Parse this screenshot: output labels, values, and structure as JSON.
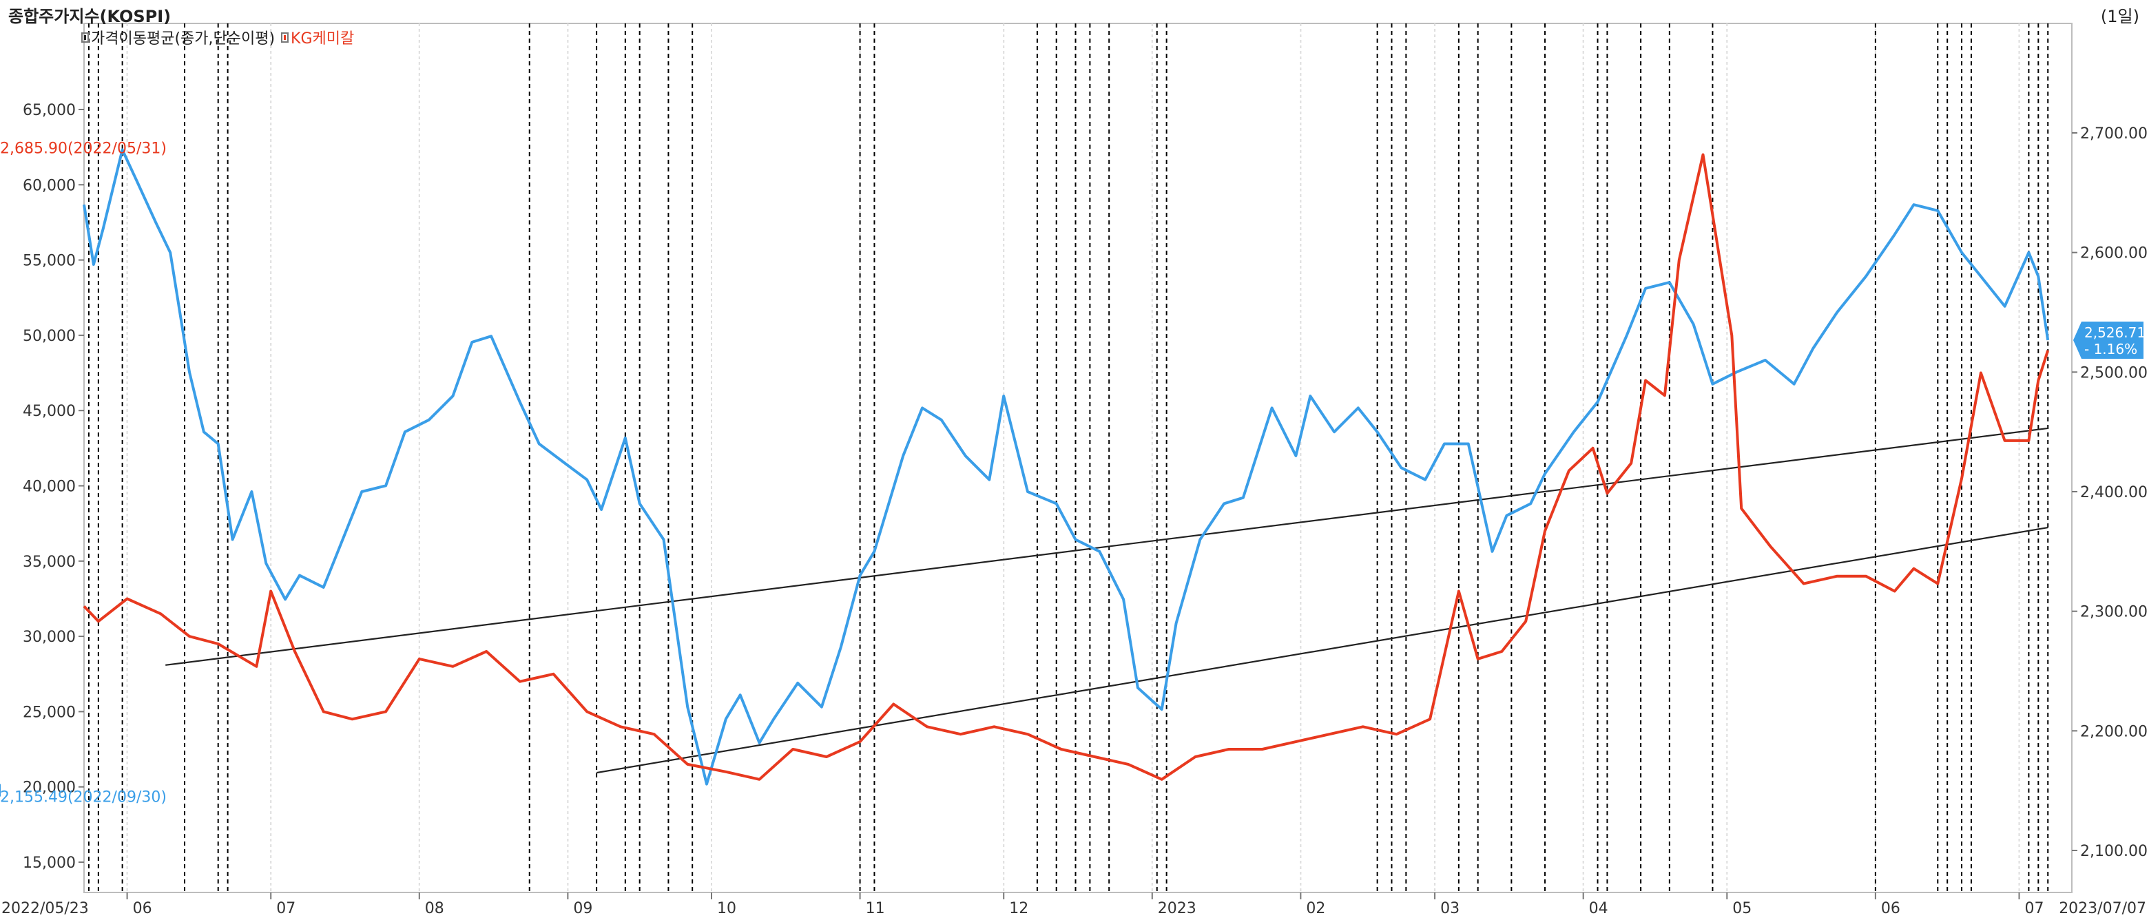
{
  "header": {
    "title": "종합주가지수(KOSPI)",
    "period": "(1일)"
  },
  "legend": [
    {
      "label": "가격이동평균(종가,단순이평)",
      "color": "#222222"
    },
    {
      "label": "KG케미칼",
      "color": "#e8391f"
    }
  ],
  "colors": {
    "kospi": "#3a9ee8",
    "kg": "#e8391f",
    "trendline": "#222222",
    "grid": "#dddddd",
    "event_line": "#000000"
  },
  "chart_data": {
    "type": "line",
    "x_tick_labels": [
      "2022/05/23",
      "06",
      "07",
      "08",
      "09",
      "10",
      "11",
      "12",
      "2023",
      "02",
      "03",
      "04",
      "05",
      "06",
      "07",
      "2023/07/07"
    ],
    "left_axis": {
      "ticks": [
        "65,000",
        "60,000",
        "55,000",
        "50,000",
        "45,000",
        "40,000",
        "35,000",
        "30,000",
        "25,000",
        "20,000",
        "15,000"
      ],
      "ylim": [
        15000,
        65000
      ]
    },
    "right_axis": {
      "ticks": [
        "2,700.00",
        "2,600.00",
        "2,500.00",
        "2,400.00",
        "2,300.00",
        "2,200.00",
        "2,100.00"
      ],
      "ylim": [
        2100,
        2700
      ]
    },
    "annotations": {
      "max": {
        "text": "2,685.90(2022/05/31)",
        "date": "2022/05/31",
        "value": 2685.9
      },
      "min": {
        "text": "2,155.49(2022/09/30)",
        "date": "2022/09/30",
        "value": 2155.49
      },
      "last_value": "2,526.71",
      "last_change": "- 1.16%"
    },
    "series": [
      {
        "name": "종합주가지수(KOSPI)",
        "axis": "right",
        "points": [
          [
            "2022-05-23",
            2640
          ],
          [
            "2022-05-25",
            2590
          ],
          [
            "2022-05-27",
            2620
          ],
          [
            "2022-05-31",
            2685.9
          ],
          [
            "2022-06-03",
            2660
          ],
          [
            "2022-06-07",
            2625
          ],
          [
            "2022-06-10",
            2600
          ],
          [
            "2022-06-14",
            2500
          ],
          [
            "2022-06-17",
            2450
          ],
          [
            "2022-06-20",
            2440
          ],
          [
            "2022-06-23",
            2360
          ],
          [
            "2022-06-27",
            2400
          ],
          [
            "2022-06-30",
            2340
          ],
          [
            "2022-07-04",
            2310
          ],
          [
            "2022-07-07",
            2330
          ],
          [
            "2022-07-12",
            2320
          ],
          [
            "2022-07-15",
            2350
          ],
          [
            "2022-07-20",
            2400
          ],
          [
            "2022-07-25",
            2405
          ],
          [
            "2022-07-29",
            2450
          ],
          [
            "2022-08-03",
            2460
          ],
          [
            "2022-08-08",
            2480
          ],
          [
            "2022-08-12",
            2525
          ],
          [
            "2022-08-16",
            2530
          ],
          [
            "2022-08-22",
            2475
          ],
          [
            "2022-08-26",
            2440
          ],
          [
            "2022-08-31",
            2425
          ],
          [
            "2022-09-05",
            2410
          ],
          [
            "2022-09-08",
            2385
          ],
          [
            "2022-09-13",
            2445
          ],
          [
            "2022-09-16",
            2390
          ],
          [
            "2022-09-21",
            2360
          ],
          [
            "2022-09-26",
            2220
          ],
          [
            "2022-09-30",
            2155.49
          ],
          [
            "2022-10-04",
            2210
          ],
          [
            "2022-10-07",
            2230
          ],
          [
            "2022-10-11",
            2190
          ],
          [
            "2022-10-14",
            2210
          ],
          [
            "2022-10-19",
            2240
          ],
          [
            "2022-10-24",
            2220
          ],
          [
            "2022-10-28",
            2270
          ],
          [
            "2022-11-01",
            2330
          ],
          [
            "2022-11-04",
            2350
          ],
          [
            "2022-11-10",
            2430
          ],
          [
            "2022-11-14",
            2470
          ],
          [
            "2022-11-18",
            2460
          ],
          [
            "2022-11-23",
            2430
          ],
          [
            "2022-11-28",
            2410
          ],
          [
            "2022-12-01",
            2480
          ],
          [
            "2022-12-06",
            2400
          ],
          [
            "2022-12-12",
            2390
          ],
          [
            "2022-12-16",
            2360
          ],
          [
            "2022-12-21",
            2350
          ],
          [
            "2022-12-26",
            2310
          ],
          [
            "2022-12-29",
            2236
          ],
          [
            "2023-01-03",
            2218
          ],
          [
            "2023-01-06",
            2290
          ],
          [
            "2023-01-11",
            2360
          ],
          [
            "2023-01-16",
            2390
          ],
          [
            "2023-01-20",
            2395
          ],
          [
            "2023-01-26",
            2470
          ],
          [
            "2023-01-31",
            2430
          ],
          [
            "2023-02-03",
            2480
          ],
          [
            "2023-02-08",
            2450
          ],
          [
            "2023-02-13",
            2470
          ],
          [
            "2023-02-17",
            2450
          ],
          [
            "2023-02-22",
            2420
          ],
          [
            "2023-02-27",
            2410
          ],
          [
            "2023-03-03",
            2440
          ],
          [
            "2023-03-08",
            2440
          ],
          [
            "2023-03-13",
            2350
          ],
          [
            "2023-03-16",
            2380
          ],
          [
            "2023-03-21",
            2390
          ],
          [
            "2023-03-24",
            2415
          ],
          [
            "2023-03-30",
            2450
          ],
          [
            "2023-04-04",
            2475
          ],
          [
            "2023-04-10",
            2530
          ],
          [
            "2023-04-14",
            2570
          ],
          [
            "2023-04-19",
            2575
          ],
          [
            "2023-04-24",
            2540
          ],
          [
            "2023-04-28",
            2490
          ],
          [
            "2023-05-03",
            2500
          ],
          [
            "2023-05-09",
            2510
          ],
          [
            "2023-05-15",
            2490
          ],
          [
            "2023-05-19",
            2520
          ],
          [
            "2023-05-24",
            2550
          ],
          [
            "2023-05-30",
            2580
          ],
          [
            "2023-06-05",
            2615
          ],
          [
            "2023-06-09",
            2640
          ],
          [
            "2023-06-14",
            2635
          ],
          [
            "2023-06-19",
            2600
          ],
          [
            "2023-06-23",
            2580
          ],
          [
            "2023-06-28",
            2555
          ],
          [
            "2023-07-03",
            2600
          ],
          [
            "2023-07-05",
            2580
          ],
          [
            "2023-07-07",
            2526.71
          ]
        ]
      },
      {
        "name": "KG케미칼",
        "axis": "left",
        "points": [
          [
            "2022-05-23",
            32000
          ],
          [
            "2022-05-26",
            31000
          ],
          [
            "2022-06-01",
            32500
          ],
          [
            "2022-06-08",
            31500
          ],
          [
            "2022-06-14",
            30000
          ],
          [
            "2022-06-20",
            29500
          ],
          [
            "2022-06-28",
            28000
          ],
          [
            "2022-07-01",
            33000
          ],
          [
            "2022-07-06",
            29000
          ],
          [
            "2022-07-12",
            25000
          ],
          [
            "2022-07-18",
            24500
          ],
          [
            "2022-07-25",
            25000
          ],
          [
            "2022-08-01",
            28500
          ],
          [
            "2022-08-08",
            28000
          ],
          [
            "2022-08-15",
            29000
          ],
          [
            "2022-08-22",
            27000
          ],
          [
            "2022-08-29",
            27500
          ],
          [
            "2022-09-05",
            25000
          ],
          [
            "2022-09-12",
            24000
          ],
          [
            "2022-09-19",
            23500
          ],
          [
            "2022-09-26",
            21500
          ],
          [
            "2022-10-04",
            21000
          ],
          [
            "2022-10-11",
            20500
          ],
          [
            "2022-10-18",
            22500
          ],
          [
            "2022-10-25",
            22000
          ],
          [
            "2022-11-01",
            23000
          ],
          [
            "2022-11-08",
            25500
          ],
          [
            "2022-11-15",
            24000
          ],
          [
            "2022-11-22",
            23500
          ],
          [
            "2022-11-29",
            24000
          ],
          [
            "2022-12-06",
            23500
          ],
          [
            "2022-12-13",
            22500
          ],
          [
            "2022-12-20",
            22000
          ],
          [
            "2022-12-27",
            21500
          ],
          [
            "2023-01-03",
            20500
          ],
          [
            "2023-01-10",
            22000
          ],
          [
            "2023-01-17",
            22500
          ],
          [
            "2023-01-24",
            22500
          ],
          [
            "2023-01-31",
            23000
          ],
          [
            "2023-02-07",
            23500
          ],
          [
            "2023-02-14",
            24000
          ],
          [
            "2023-02-21",
            23500
          ],
          [
            "2023-02-28",
            24500
          ],
          [
            "2023-03-06",
            33000
          ],
          [
            "2023-03-10",
            28500
          ],
          [
            "2023-03-15",
            29000
          ],
          [
            "2023-03-20",
            31000
          ],
          [
            "2023-03-24",
            37000
          ],
          [
            "2023-03-29",
            41000
          ],
          [
            "2023-04-03",
            42500
          ],
          [
            "2023-04-06",
            39500
          ],
          [
            "2023-04-11",
            41500
          ],
          [
            "2023-04-14",
            47000
          ],
          [
            "2023-04-18",
            46000
          ],
          [
            "2023-04-21",
            55000
          ],
          [
            "2023-04-26",
            62000
          ],
          [
            "2023-05-02",
            50000
          ],
          [
            "2023-05-04",
            38500
          ],
          [
            "2023-05-10",
            36000
          ],
          [
            "2023-05-17",
            33500
          ],
          [
            "2023-05-24",
            34000
          ],
          [
            "2023-05-30",
            34000
          ],
          [
            "2023-06-05",
            33000
          ],
          [
            "2023-06-09",
            34500
          ],
          [
            "2023-06-14",
            33500
          ],
          [
            "2023-06-19",
            40500
          ],
          [
            "2023-06-23",
            47500
          ],
          [
            "2023-06-28",
            43000
          ],
          [
            "2023-07-03",
            43000
          ],
          [
            "2023-07-05",
            47000
          ],
          [
            "2023-07-07",
            49000
          ]
        ]
      }
    ],
    "trendlines": [
      {
        "from": [
          "2022-06-09",
          2255
        ],
        "to": [
          "2023-07-07",
          2453
        ]
      },
      {
        "from": [
          "2022-09-07",
          2165
        ],
        "to": [
          "2023-07-07",
          2370
        ]
      }
    ],
    "event_dates": [
      "2022-05-24",
      "2022-05-26",
      "2022-05-31",
      "2022-06-13",
      "2022-06-20",
      "2022-06-22",
      "2022-08-24",
      "2022-09-07",
      "2022-09-13",
      "2022-09-16",
      "2022-09-22",
      "2022-09-27",
      "2022-11-01",
      "2022-11-04",
      "2022-12-08",
      "2022-12-12",
      "2022-12-16",
      "2022-12-19",
      "2022-12-23",
      "2023-01-02",
      "2023-01-04",
      "2023-02-17",
      "2023-02-20",
      "2023-02-23",
      "2023-03-06",
      "2023-03-10",
      "2023-03-17",
      "2023-03-24",
      "2023-04-04",
      "2023-04-06",
      "2023-04-13",
      "2023-04-19",
      "2023-04-28",
      "2023-06-01",
      "2023-06-14",
      "2023-06-16",
      "2023-06-19",
      "2023-06-21",
      "2023-07-03",
      "2023-07-05",
      "2023-07-07"
    ],
    "grid": true
  }
}
